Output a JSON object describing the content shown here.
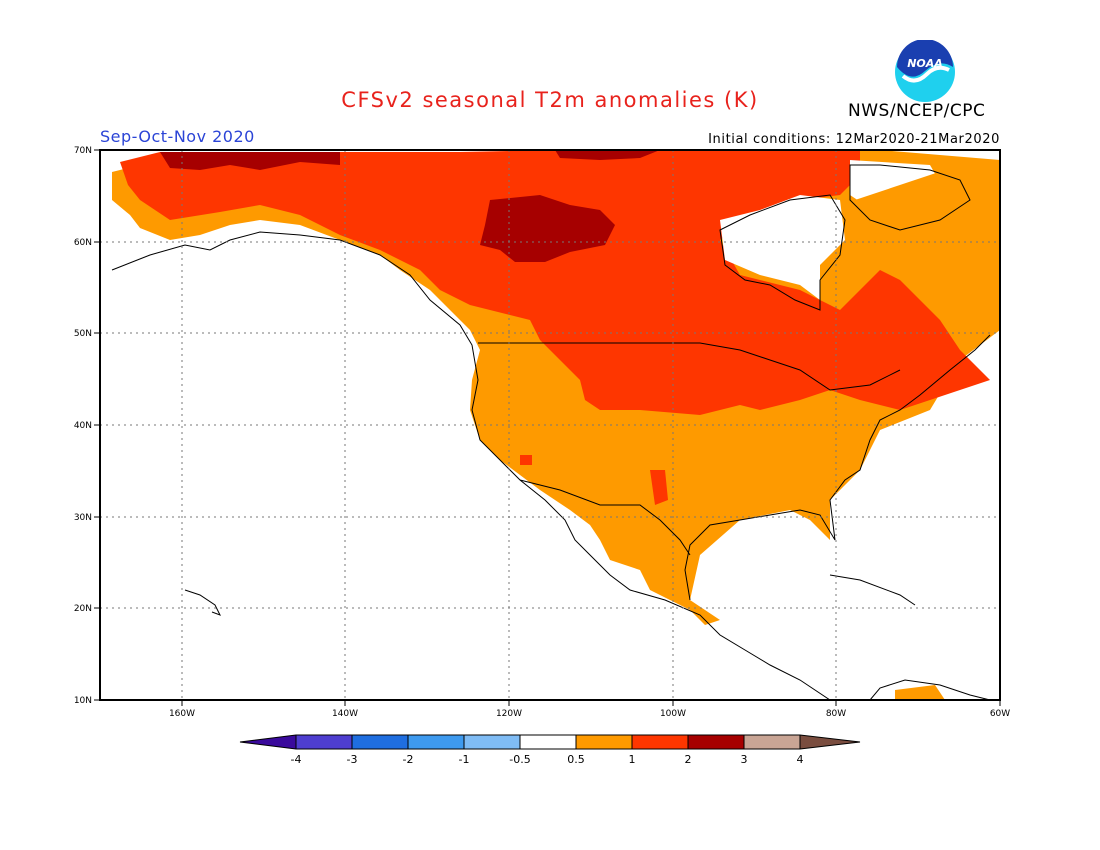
{
  "header": {
    "title": "CFSv2 seasonal T2m anomalies (K)",
    "period": "Sep-Oct-Nov 2020",
    "initial_conditions": "Initial conditions: 12Mar2020-21Mar2020",
    "agency": "NWS/NCEP/CPC",
    "logo_text": "NOAA"
  },
  "map": {
    "lat_labels": [
      "70N",
      "60N",
      "50N",
      "40N",
      "30N",
      "20N",
      "10N"
    ],
    "lon_labels": [
      "160W",
      "140W",
      "120W",
      "100W",
      "80W",
      "60W"
    ],
    "lat_range": [
      10,
      70
    ],
    "lon_range": [
      -170,
      -60
    ]
  },
  "legend": {
    "labels": [
      "-4",
      "-3",
      "-2",
      "-1",
      "-0.5",
      "0.5",
      "1",
      "2",
      "3",
      "4"
    ],
    "colors": [
      "#3a0a9c",
      "#4e3ed0",
      "#1f6ee0",
      "#3e9aef",
      "#7fbcf5",
      "#ffffff",
      "#fe9a00",
      "#fe3600",
      "#a60000",
      "#c9a595",
      "#7a4d3f"
    ]
  }
}
